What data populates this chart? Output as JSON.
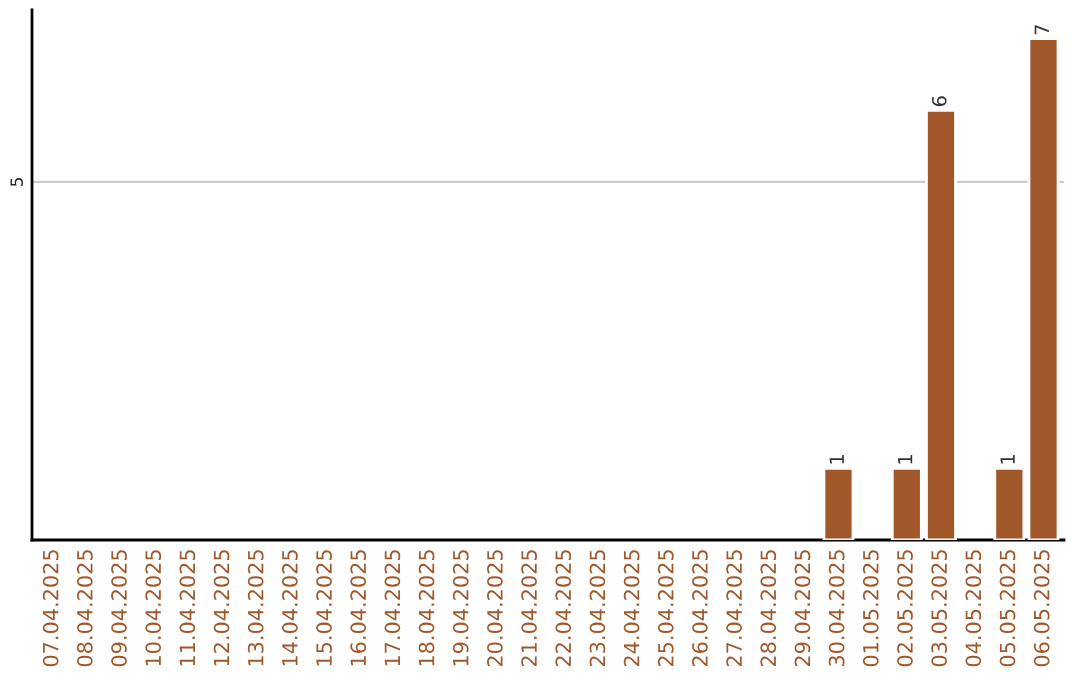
{
  "chart_data": {
    "type": "bar",
    "categories": [
      "07.04.2025",
      "08.04.2025",
      "09.04.2025",
      "10.04.2025",
      "11.04.2025",
      "12.04.2025",
      "13.04.2025",
      "14.04.2025",
      "15.04.2025",
      "16.04.2025",
      "17.04.2025",
      "18.04.2025",
      "19.04.2025",
      "20.04.2025",
      "21.04.2025",
      "22.04.2025",
      "23.04.2025",
      "24.04.2025",
      "25.04.2025",
      "26.04.2025",
      "27.04.2025",
      "28.04.2025",
      "29.04.2025",
      "30.04.2025",
      "01.05.2025",
      "02.05.2025",
      "03.05.2025",
      "04.05.2025",
      "05.05.2025",
      "06.05.2025"
    ],
    "values": [
      null,
      null,
      null,
      null,
      null,
      null,
      null,
      null,
      null,
      null,
      null,
      null,
      null,
      null,
      null,
      null,
      null,
      null,
      null,
      null,
      null,
      null,
      null,
      1,
      null,
      1,
      6,
      null,
      1,
      7
    ],
    "value_labels": [
      null,
      null,
      null,
      null,
      null,
      null,
      null,
      null,
      null,
      null,
      null,
      null,
      null,
      null,
      null,
      null,
      null,
      null,
      null,
      null,
      null,
      null,
      null,
      "1",
      null,
      "1",
      "6",
      null,
      "1",
      "7"
    ],
    "color": "#a0582a",
    "ylim": [
      0,
      7.4
    ],
    "yticks": [
      5
    ],
    "grid": "y"
  }
}
